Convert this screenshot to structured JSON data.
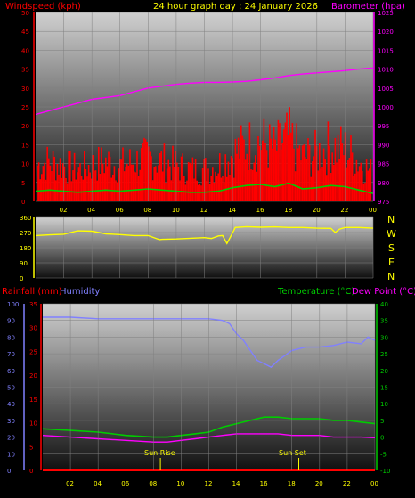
{
  "header": {
    "wind_label": "Windspeed (kph)",
    "title": "24 hour graph day : 24 January 2026",
    "baro_label": "Barometer (hpa)"
  },
  "colors": {
    "wind": "#ff0000",
    "gust_fill": "#ff0000",
    "average": "#00cc00",
    "barometer": "#ff00ff",
    "direction": "#ffff00",
    "humidity": "#8080ff",
    "temperature": "#00cc00",
    "dewpoint": "#ff00ff",
    "rain": "#ff0000",
    "axis_yellow": "#ffff00"
  },
  "x_ticks": [
    "02",
    "04",
    "06",
    "08",
    "10",
    "12",
    "14",
    "16",
    "18",
    "20",
    "22",
    "00"
  ],
  "direction_letters": [
    "N",
    "W",
    "S",
    "E",
    "N"
  ],
  "lower_labels": {
    "rain": "Rainfall (mm)",
    "humidity": "Humidity",
    "temperature": "Temperature (°C)",
    "dewpoint": "Dew Point (°C)"
  },
  "sun": {
    "rise": "Sun Rise",
    "set": "Sun Set",
    "rise_hour": 8.5,
    "set_hour": 18.5
  },
  "chart_data": [
    {
      "type": "line",
      "name": "wind-barometer",
      "title": "24 hour graph day : 24 January 2026",
      "x_ticks": [
        "02",
        "04",
        "06",
        "08",
        "10",
        "12",
        "14",
        "16",
        "18",
        "20",
        "22",
        "00"
      ],
      "left_axis": {
        "label": "Windspeed (kph)",
        "ticks": [
          0,
          5,
          10,
          15,
          20,
          25,
          30,
          35,
          40,
          45,
          50
        ],
        "ylim": [
          0,
          50
        ]
      },
      "right_axis": {
        "label": "Barometer (hpa)",
        "ticks": [
          975,
          980,
          985,
          990,
          995,
          1000,
          1005,
          1010,
          1015,
          1020,
          1025
        ],
        "ylim": [
          975,
          1025
        ]
      },
      "series": [
        {
          "name": "Windspeed (kph)",
          "axis": "left",
          "x": [
            0,
            1,
            2,
            3,
            4,
            5,
            6,
            7,
            8,
            9,
            10,
            11,
            12,
            13,
            14,
            15,
            16,
            17,
            18,
            19,
            20,
            21,
            22,
            23,
            24
          ],
          "values": [
            9,
            10,
            9,
            8,
            9,
            10,
            9,
            10,
            11,
            10,
            9,
            8,
            8,
            9,
            12,
            14,
            15,
            13,
            16,
            11,
            12,
            14,
            13,
            10,
            7
          ]
        },
        {
          "name": "Barometer (hpa)",
          "axis": "right",
          "x": [
            0,
            1,
            2,
            3,
            4,
            5,
            6,
            7,
            8,
            9,
            10,
            11,
            12,
            13,
            14,
            15,
            16,
            17,
            18,
            19,
            20,
            21,
            22,
            23,
            24
          ],
          "values": [
            998,
            999,
            1000,
            1001,
            1002,
            1002.5,
            1003,
            1004,
            1005,
            1005.5,
            1006,
            1006.3,
            1006.5,
            1006.5,
            1006.6,
            1006.8,
            1007.2,
            1007.7,
            1008.3,
            1008.7,
            1009,
            1009.3,
            1009.6,
            1010,
            1010.3
          ]
        }
      ]
    },
    {
      "type": "line",
      "name": "wind-direction",
      "y_ticks": [
        0,
        90,
        180,
        270,
        360
      ],
      "ylim": [
        0,
        360
      ],
      "series": [
        {
          "name": "Wind Direction",
          "x": [
            0,
            1,
            2,
            3,
            4,
            5,
            6,
            7,
            8,
            8.8,
            9,
            10,
            11,
            12,
            12.5,
            13,
            13.3,
            13.6,
            13.9,
            14.2,
            15,
            16,
            17,
            18,
            19,
            20,
            21,
            21.3,
            21.6,
            22,
            23,
            24
          ],
          "values": [
            252,
            256,
            260,
            280,
            278,
            262,
            258,
            252,
            252,
            228,
            230,
            232,
            236,
            240,
            235,
            250,
            252,
            205,
            252,
            300,
            305,
            302,
            304,
            300,
            300,
            296,
            295,
            270,
            290,
            300,
            300,
            296
          ]
        }
      ]
    },
    {
      "type": "line",
      "name": "temperature-humidity",
      "x_ticks": [
        "02",
        "04",
        "06",
        "08",
        "10",
        "12",
        "14",
        "16",
        "18",
        "20",
        "22",
        "00"
      ],
      "left_axis": {
        "label": "Humidity",
        "ticks": [
          0,
          10,
          20,
          30,
          40,
          50,
          60,
          70,
          80,
          90,
          100
        ],
        "ylim": [
          0,
          100
        ]
      },
      "rain_axis": {
        "label": "Rainfall (mm)",
        "ticks": [
          0,
          5,
          10,
          15,
          20,
          25,
          30,
          35
        ],
        "ylim": [
          0,
          35
        ]
      },
      "right_axis": {
        "label": "Temperature (°C)",
        "ticks": [
          -10,
          -5,
          0,
          5,
          10,
          15,
          20,
          25,
          30,
          35,
          40
        ],
        "ylim": [
          -10,
          40
        ]
      },
      "series": [
        {
          "name": "Humidity",
          "axis": "left",
          "x": [
            0,
            2,
            4,
            6,
            8,
            10,
            12,
            13,
            13.5,
            14,
            14.5,
            15,
            15.5,
            16,
            16.5,
            17,
            18,
            19,
            20,
            21,
            22,
            23,
            23.5,
            24
          ],
          "values": [
            92,
            92,
            91,
            91,
            91,
            91,
            91,
            90,
            88,
            82,
            78,
            72,
            66,
            64,
            62,
            66,
            72,
            74,
            74,
            75,
            77,
            76,
            80,
            78
          ]
        },
        {
          "name": "Temperature (°C)",
          "axis": "right",
          "x": [
            0,
            2,
            4,
            6,
            8,
            9,
            10,
            11,
            12,
            13,
            14,
            15,
            16,
            17,
            18,
            19,
            20,
            21,
            22,
            23,
            24
          ],
          "values": [
            2.5,
            2,
            1.5,
            0.5,
            0,
            0,
            0.5,
            1,
            1.5,
            3,
            4,
            5,
            6,
            6,
            5.5,
            5.5,
            5.5,
            5,
            5,
            4.5,
            4
          ]
        },
        {
          "name": "Dew Point (°C)",
          "axis": "right",
          "x": [
            0,
            2,
            4,
            6,
            8,
            9,
            10,
            11,
            12,
            13,
            14,
            15,
            16,
            17,
            18,
            19,
            20,
            21,
            22,
            23,
            24
          ],
          "values": [
            0.5,
            0,
            -0.5,
            -1,
            -1.5,
            -1.5,
            -1,
            -0.5,
            0,
            0.5,
            1,
            1,
            1,
            1,
            0.5,
            0.5,
            0.5,
            0,
            0,
            0,
            -0.2
          ]
        },
        {
          "name": "Rainfall (mm)",
          "axis": "rain",
          "x": [
            0,
            24
          ],
          "values": [
            0,
            0
          ]
        }
      ]
    }
  ]
}
